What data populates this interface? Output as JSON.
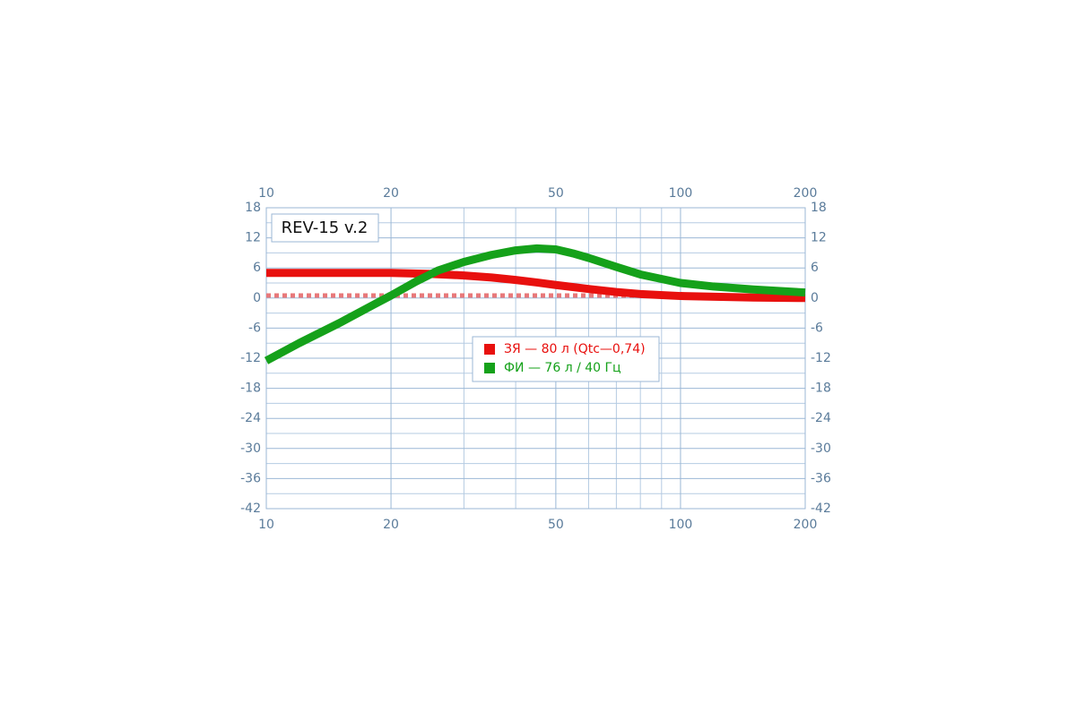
{
  "chart_data": {
    "type": "line",
    "title": "REV-15 v.2",
    "xscale": "log",
    "xlim": [
      10,
      200
    ],
    "xticks": [
      10,
      20,
      50,
      100,
      200
    ],
    "xminor": [
      30,
      40,
      60,
      70,
      80,
      90
    ],
    "ylim": [
      -42,
      18
    ],
    "yticks": [
      -42,
      -36,
      -30,
      -24,
      -18,
      -12,
      -6,
      0,
      6,
      12,
      18
    ],
    "yminor": [
      -39,
      -33,
      -27,
      -21,
      -15,
      -9,
      -3,
      3,
      9,
      15
    ],
    "grid": true,
    "reference_line": {
      "value": 0.5,
      "color": "#e8787a"
    },
    "series": [
      {
        "name": "ЗЯ — 80 л (Qtc—0,74)",
        "color": "#e8100e",
        "x": [
          10,
          15,
          20,
          25,
          30,
          35,
          40,
          45,
          50,
          60,
          70,
          80,
          100,
          150,
          200
        ],
        "values": [
          5,
          5,
          5,
          4.8,
          4.5,
          4.1,
          3.6,
          3.1,
          2.6,
          1.8,
          1.2,
          0.8,
          0.4,
          0.1,
          0
        ]
      },
      {
        "name": "ФИ — 76 л / 40 Гц",
        "color": "#15a11a",
        "x": [
          10,
          12,
          15,
          18,
          20,
          23,
          26,
          30,
          35,
          40,
          45,
          50,
          55,
          60,
          70,
          80,
          100,
          120,
          150,
          200
        ],
        "values": [
          -12.5,
          -9,
          -5,
          -1.5,
          0.5,
          3.3,
          5.5,
          7.2,
          8.6,
          9.5,
          9.9,
          9.7,
          8.9,
          8,
          6.2,
          4.7,
          3,
          2.3,
          1.7,
          1.1
        ]
      }
    ]
  }
}
